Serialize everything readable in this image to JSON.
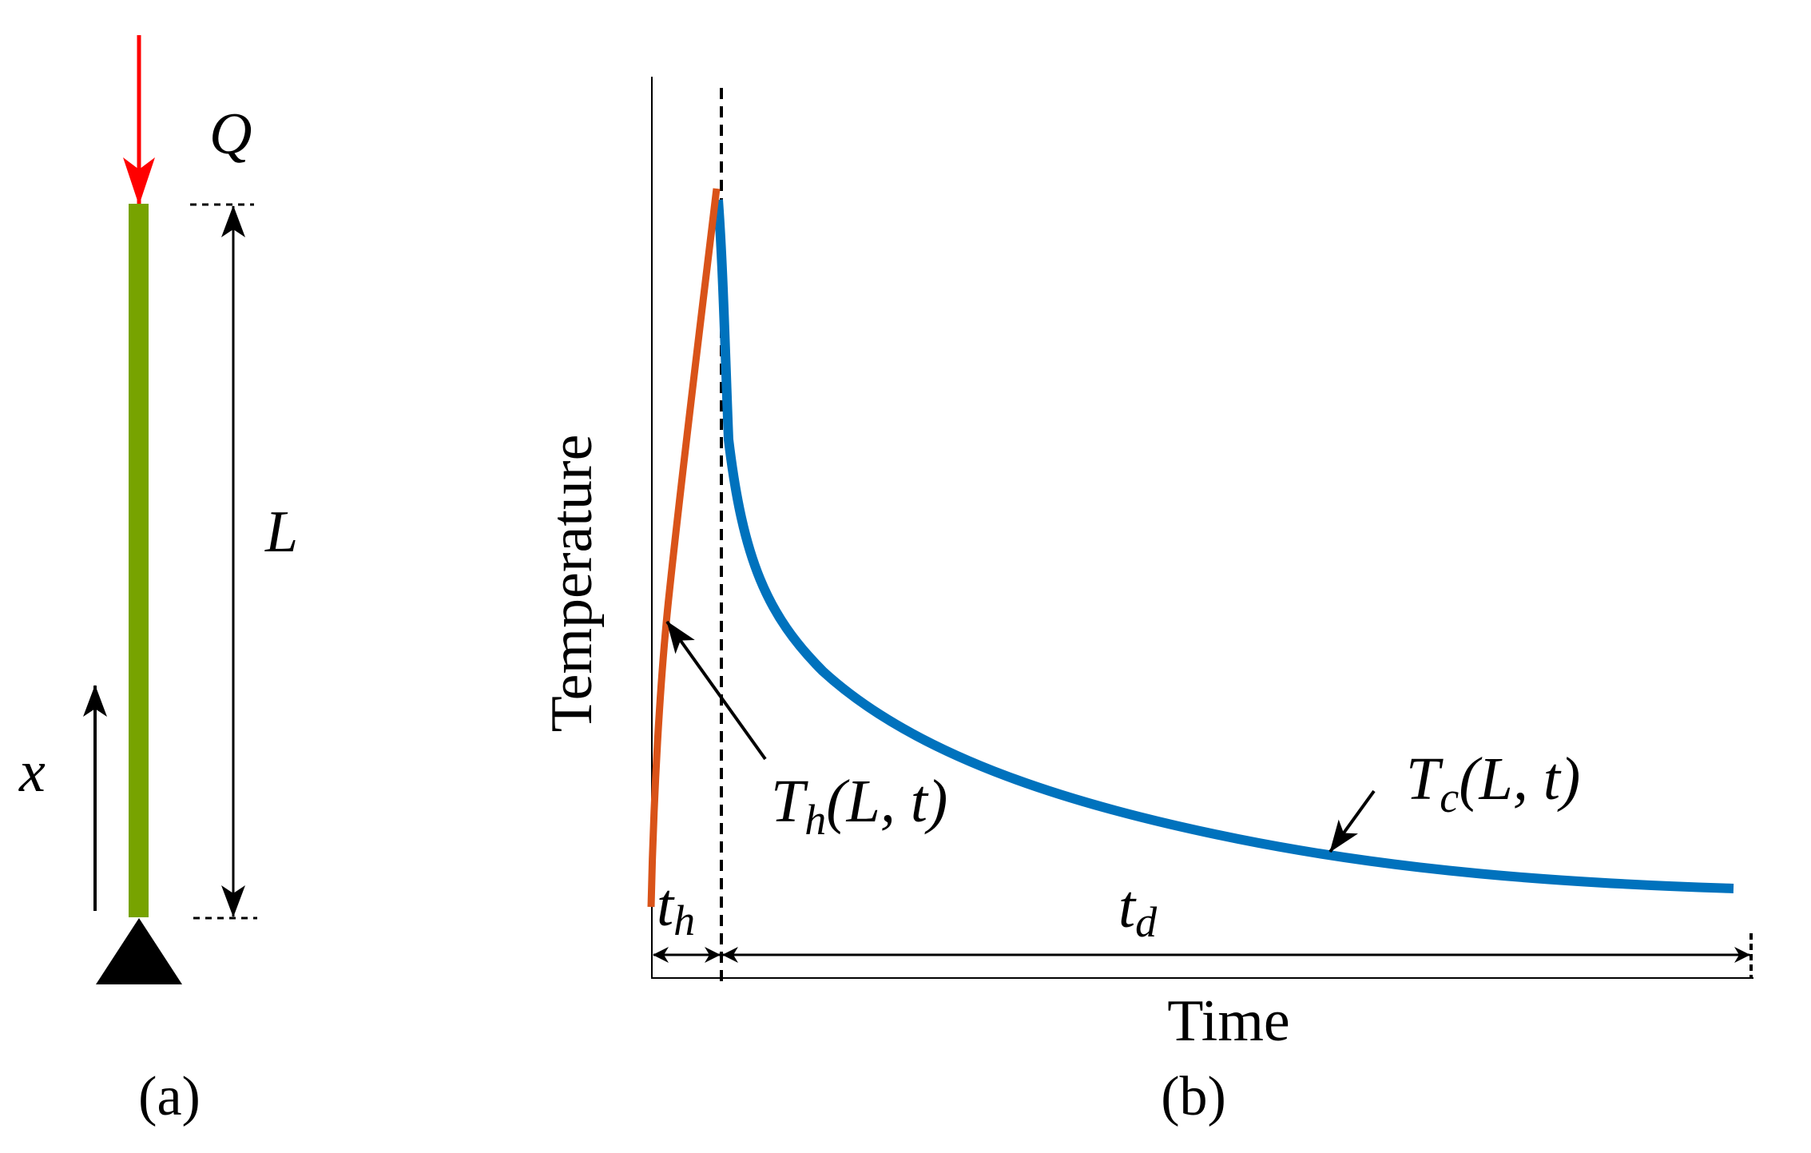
{
  "panel_a": {
    "caption": "(a)",
    "load_label": "Q",
    "length_label": "L",
    "axis_label": "x",
    "colors": {
      "rod": "#77a300",
      "load_arrow": "#ff0000",
      "support": "#000000"
    }
  },
  "panel_b": {
    "caption": "(b)",
    "xlabel": "Time",
    "ylabel": "Temperature",
    "heating_curve": {
      "T": "T",
      "sub": "h",
      "args": "(L, t)",
      "color": "#d95319"
    },
    "cooling_curve": {
      "T": "T",
      "sub": "c",
      "args": "(L, t)",
      "color": "#0072bd"
    },
    "heating_interval": {
      "t": "t",
      "sub": "h"
    },
    "cooling_interval": {
      "t": "t",
      "sub": "d"
    }
  }
}
